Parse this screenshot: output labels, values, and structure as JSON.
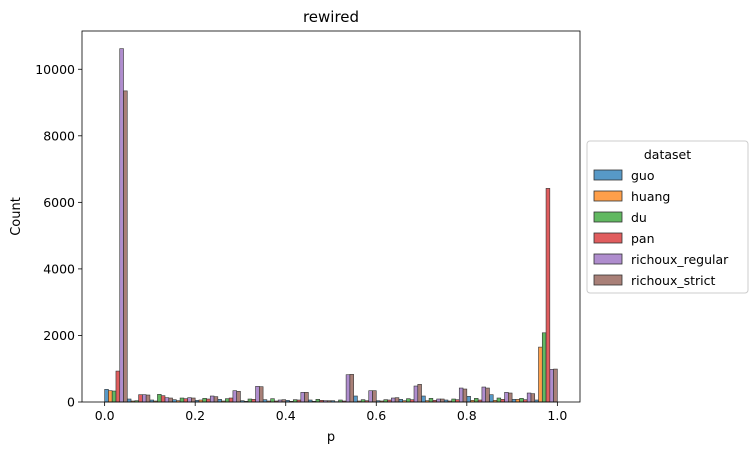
{
  "chart_data": {
    "type": "bar",
    "title": "rewired",
    "xlabel": "p",
    "ylabel": "Count",
    "xlim": [
      -0.05,
      1.05
    ],
    "ylim": [
      0,
      11150
    ],
    "xticks": [
      0.0,
      0.2,
      0.4,
      0.6,
      0.8,
      1.0
    ],
    "xtick_labels": [
      "0.0",
      "0.2",
      "0.4",
      "0.6",
      "0.8",
      "1.0"
    ],
    "yticks": [
      0,
      2000,
      4000,
      6000,
      8000,
      10000
    ],
    "ytick_labels": [
      "0",
      "2000",
      "4000",
      "6000",
      "8000",
      "10000"
    ],
    "bin_edges_start": 0.0,
    "bin_width": 0.05,
    "grid": false,
    "legend": {
      "title": "dataset",
      "placement": "center-right outside",
      "entries": [
        "guo",
        "huang",
        "du",
        "pan",
        "richoux_regular",
        "richoux_strict"
      ]
    },
    "series": [
      {
        "name": "guo",
        "color": "#1f77b4",
        "values": [
          380,
          90,
          60,
          70,
          50,
          80,
          40,
          70,
          50,
          60,
          40,
          180,
          40,
          80,
          180,
          60,
          170,
          220,
          80,
          60
        ]
      },
      {
        "name": "huang",
        "color": "#ff7f0e",
        "values": [
          340,
          30,
          30,
          40,
          60,
          30,
          20,
          30,
          20,
          20,
          10,
          30,
          30,
          40,
          40,
          30,
          50,
          50,
          80,
          1650
        ]
      },
      {
        "name": "du",
        "color": "#2ca02c",
        "values": [
          330,
          40,
          230,
          120,
          110,
          100,
          90,
          100,
          70,
          80,
          60,
          70,
          70,
          100,
          110,
          90,
          110,
          120,
          110,
          2080
        ]
      },
      {
        "name": "pan",
        "color": "#d62728",
        "values": [
          930,
          220,
          190,
          100,
          90,
          120,
          80,
          30,
          60,
          50,
          30,
          40,
          60,
          70,
          50,
          70,
          60,
          80,
          70,
          6420
        ]
      },
      {
        "name": "richoux_regular",
        "color": "#9467bd",
        "values": [
          10620,
          220,
          130,
          130,
          180,
          340,
          470,
          60,
          290,
          40,
          820,
          340,
          120,
          480,
          90,
          420,
          450,
          290,
          270,
          980
        ]
      },
      {
        "name": "richoux_strict",
        "color": "#8c564b",
        "values": [
          9350,
          210,
          120,
          120,
          160,
          320,
          460,
          70,
          290,
          40,
          830,
          340,
          130,
          530,
          90,
          390,
          420,
          270,
          250,
          990
        ]
      }
    ]
  }
}
